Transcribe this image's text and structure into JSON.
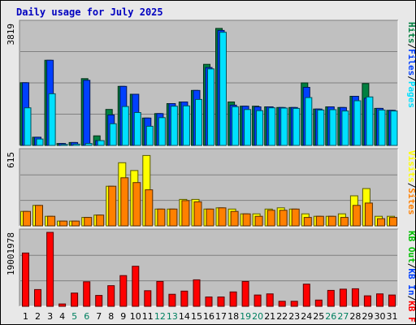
{
  "chart_data": {
    "type": "bar",
    "title": "Daily usage for July 2025",
    "categories": [
      "1",
      "2",
      "3",
      "4",
      "5",
      "6",
      "7",
      "8",
      "9",
      "10",
      "11",
      "12",
      "13",
      "14",
      "15",
      "16",
      "17",
      "18",
      "19",
      "20",
      "21",
      "22",
      "23",
      "24",
      "25",
      "26",
      "27",
      "28",
      "29",
      "30",
      "31"
    ],
    "weekend_days": [
      "5",
      "6",
      "12",
      "13",
      "19",
      "20",
      "26",
      "27"
    ],
    "panels": [
      {
        "id": "top",
        "ymax": 3819,
        "ymax_label": "3819",
        "label_parts": [
          {
            "text": "Hits",
            "color": "#008040"
          },
          {
            "text": "/",
            "color": "#000000"
          },
          {
            "text": "Files",
            "color": "#0040ff"
          },
          {
            "text": "/",
            "color": "#000000"
          },
          {
            "text": "Pages",
            "color": "#00e0ff"
          }
        ],
        "series": [
          {
            "name": "Hits",
            "color": "#008040",
            "values": [
              1965,
              257,
              2668,
              61,
              92,
              2092,
              301,
              1128,
              1851,
              1603,
              857,
              998,
              1312,
              1363,
              1723,
              2542,
              3666,
              1363,
              1230,
              1230,
              1210,
              1190,
              1190,
              1960,
              1140,
              1210,
              1190,
              1540,
              1940,
              1160,
              1100
            ]
          },
          {
            "name": "Files",
            "color": "#0040ff",
            "values": [
              1965,
              257,
              2668,
              61,
              92,
              2042,
              150,
              956,
              1851,
              1603,
              857,
              998,
              1312,
              1363,
              1723,
              2442,
              3606,
              1263,
              1230,
              1210,
              1210,
              1190,
              1190,
              1820,
              1140,
              1210,
              1190,
              1540,
              1480,
              1160,
              1100
            ]
          },
          {
            "name": "Pages",
            "color": "#00e0ff",
            "values": [
              1180,
              200,
              1620,
              30,
              40,
              60,
              150,
              681,
              1220,
              1030,
              600,
              870,
              1230,
              1240,
              1440,
              2398,
              3546,
              1212,
              1125,
              1090,
              1180,
              1170,
              1160,
              1499,
              1110,
              1120,
              1080,
              1400,
              1520,
              1110,
              1080
            ]
          }
        ]
      },
      {
        "id": "middle",
        "ymax": 615,
        "ymax_label": "615",
        "label_parts": [
          {
            "text": "Visits",
            "color": "#ffff00"
          },
          {
            "text": "/",
            "color": "#000000"
          },
          {
            "text": "Sites",
            "color": "#ff8000"
          }
        ],
        "series": [
          {
            "name": "Visits",
            "color": "#ffff00",
            "values": [
              120,
              170,
              80,
              40,
              40,
              70,
              90,
              330,
              525,
              460,
              585,
              140,
              140,
              220,
              220,
              140,
              150,
              140,
              100,
              100,
              140,
              150,
              140,
              100,
              80,
              80,
              100,
              250,
              310,
              80,
              80
            ]
          },
          {
            "name": "Sites",
            "color": "#ff8000",
            "values": [
              120,
              170,
              80,
              40,
              40,
              70,
              90,
              330,
              400,
              360,
              300,
              140,
              140,
              210,
              200,
              140,
              150,
              120,
              100,
              80,
              130,
              130,
              140,
              70,
              80,
              80,
              70,
              170,
              190,
              60,
              70
            ]
          }
        ]
      },
      {
        "id": "bottom",
        "ymax": 19001978,
        "ymax_label": "19001978",
        "label_parts": [
          {
            "text": "KB Out",
            "color": "#00c000"
          },
          {
            "text": "/",
            "color": "#000000"
          },
          {
            "text": "KB In",
            "color": "#0040ff"
          },
          {
            "text": "/",
            "color": "#000000"
          },
          {
            "text": "KB F",
            "color": "#ff0000"
          }
        ],
        "series": [
          {
            "name": "KB F",
            "color": "#ff0000",
            "values": [
              13700000,
              4300000,
              19001978,
              600000,
              3400000,
              6300000,
              2800000,
              5300000,
              7900000,
              10300000,
              4000000,
              6400000,
              3100000,
              3900000,
              6800000,
              2400000,
              2400000,
              3700000,
              6400000,
              2900000,
              3200000,
              1300000,
              1300000,
              5700000,
              1600000,
              4100000,
              4400000,
              4500000,
              2700000,
              3200000,
              2900000
            ]
          }
        ]
      }
    ],
    "grid": true,
    "legend": "right-vertical"
  }
}
